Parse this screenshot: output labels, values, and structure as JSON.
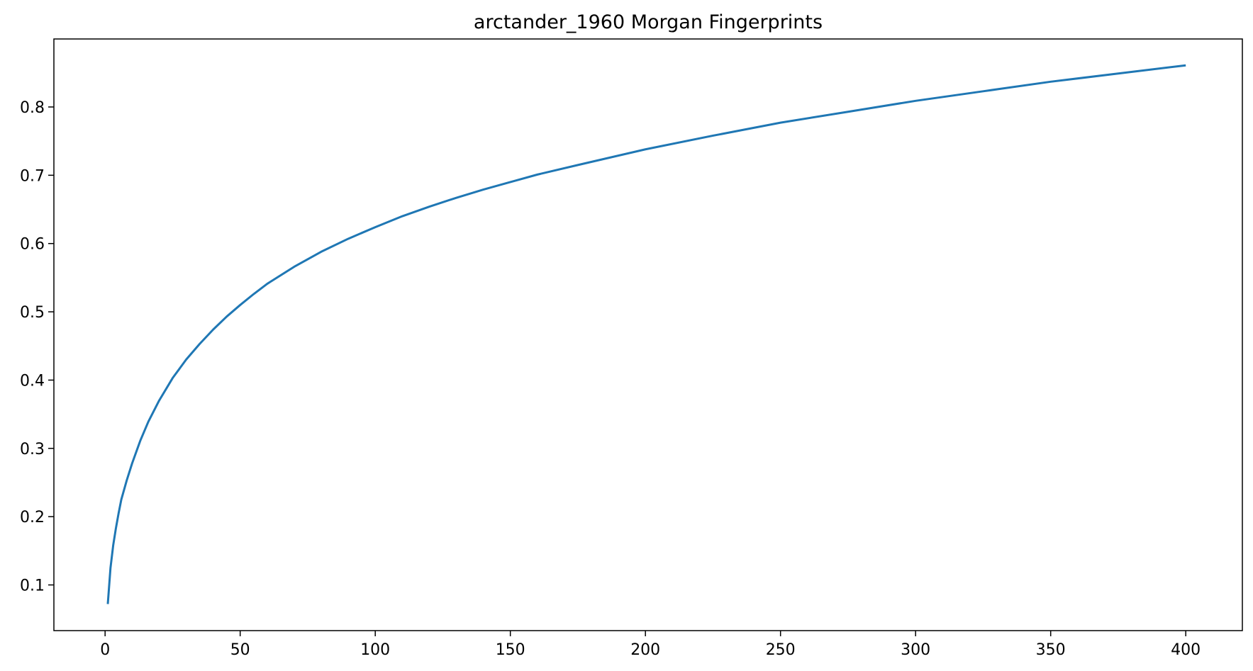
{
  "chart_data": {
    "type": "line",
    "title": "arctander_1960 Morgan Fingerprints",
    "xlabel": "",
    "ylabel": "",
    "xlim": [
      -18.95,
      420.95
    ],
    "ylim": [
      0.0331,
      0.8996
    ],
    "xticks": [
      0,
      50,
      100,
      150,
      200,
      250,
      300,
      350,
      400
    ],
    "xtick_labels": [
      "0",
      "50",
      "100",
      "150",
      "200",
      "250",
      "300",
      "350",
      "400"
    ],
    "yticks": [
      0.1,
      0.2,
      0.3,
      0.4,
      0.5,
      0.6,
      0.7,
      0.8
    ],
    "ytick_labels": [
      "0.1",
      "0.2",
      "0.3",
      "0.4",
      "0.5",
      "0.6",
      "0.7",
      "0.8"
    ],
    "grid": false,
    "legend": "none",
    "line_color": "#1f77b4",
    "series": [
      {
        "x": [
          1,
          2,
          3,
          4,
          5,
          6,
          8,
          10,
          13,
          16,
          20,
          25,
          30,
          35,
          40,
          45,
          50,
          55,
          60,
          70,
          80,
          90,
          100,
          110,
          120,
          130,
          140,
          150,
          160,
          175,
          200,
          225,
          250,
          275,
          300,
          325,
          350,
          375,
          400
        ],
        "y": [
          0.072,
          0.125,
          0.158,
          0.183,
          0.205,
          0.225,
          0.253,
          0.278,
          0.311,
          0.339,
          0.37,
          0.403,
          0.43,
          0.453,
          0.474,
          0.493,
          0.51,
          0.526,
          0.541,
          0.566,
          0.588,
          0.607,
          0.624,
          0.64,
          0.654,
          0.667,
          0.679,
          0.69,
          0.701,
          0.715,
          0.738,
          0.758,
          0.777,
          0.793,
          0.809,
          0.823,
          0.837,
          0.849,
          0.861
        ]
      }
    ]
  }
}
